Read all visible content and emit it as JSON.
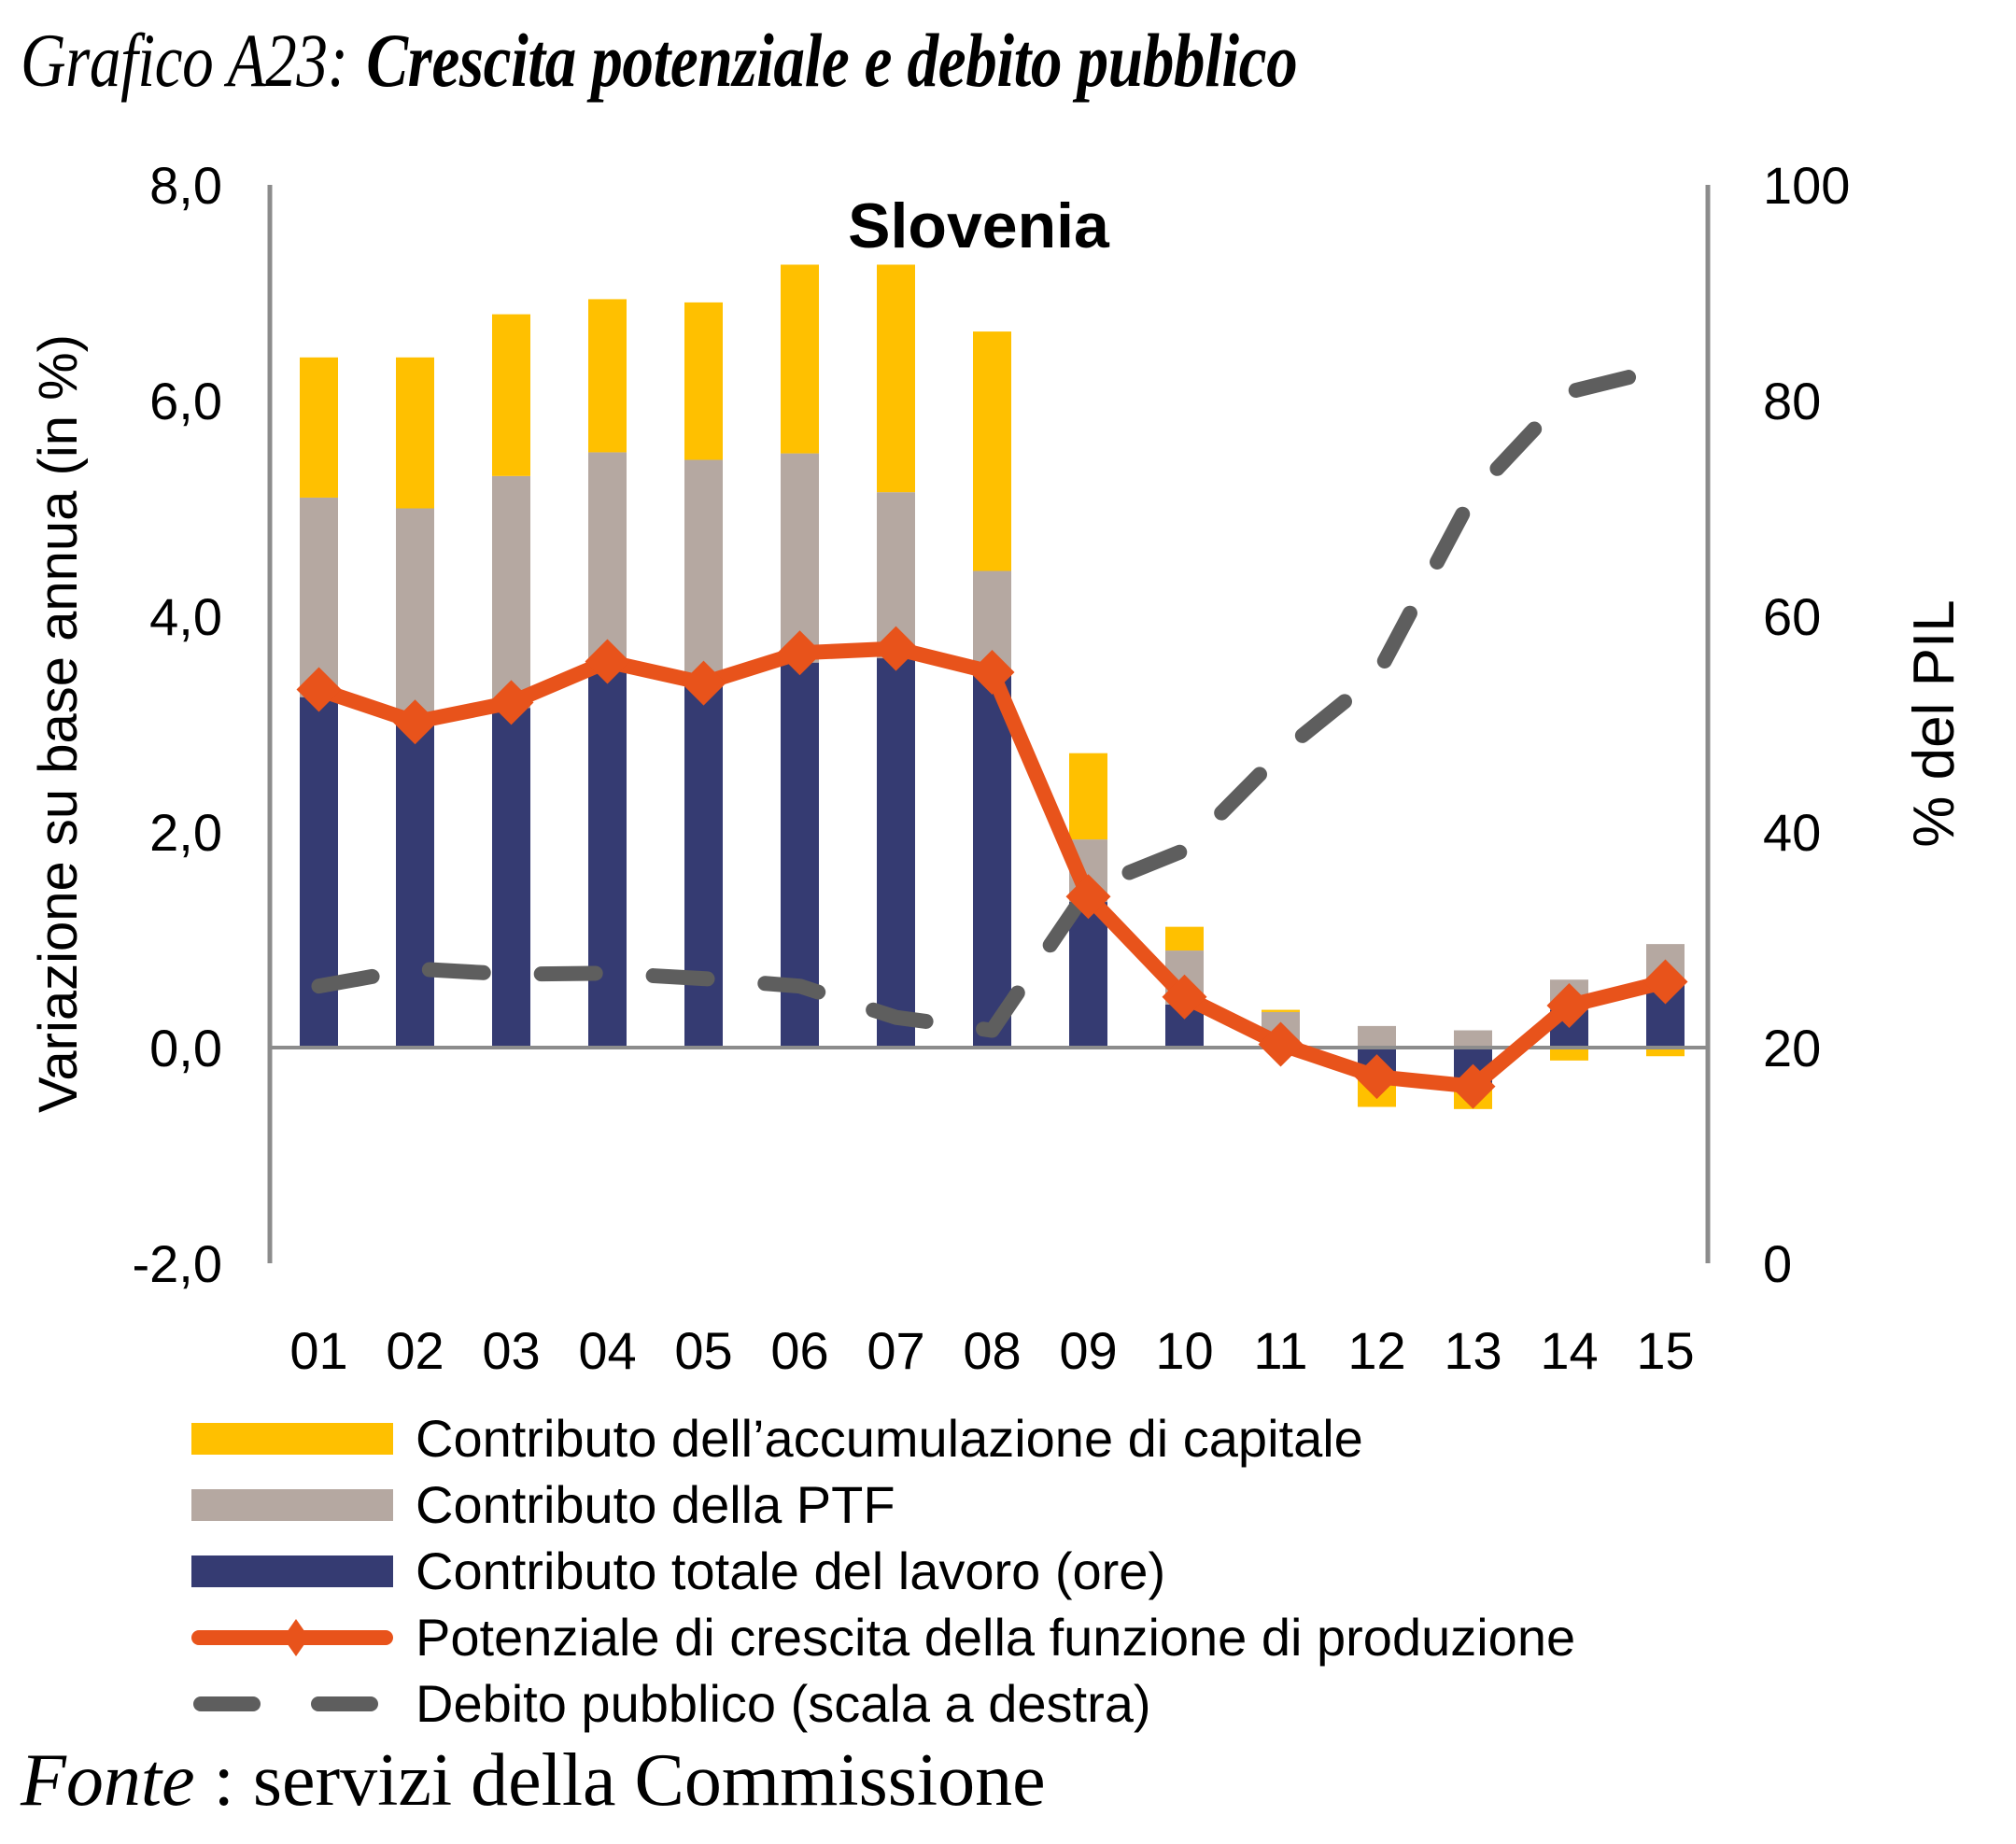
{
  "header": {
    "figure_number": "Grafico A23:",
    "title": "Crescita potenziale e debito pubblico"
  },
  "footer": {
    "source_lead": "Fonte",
    "source_text": " : servizi della Commissione"
  },
  "colors": {
    "capital": "#FFC000",
    "tfp": "#B5A8A1",
    "labour": "#353B72",
    "potential": "#E8531B",
    "debt": "#5E5E5E",
    "axis": "#8C8C8C"
  },
  "chart_data": {
    "type": "bar",
    "subtype": "stacked bar + line (dual axis)",
    "title": "Slovenia",
    "xlabel": "",
    "ylabel": "Variazione su base annua (in %)",
    "y2label": "% del PIL",
    "categories": [
      "01",
      "02",
      "03",
      "04",
      "05",
      "06",
      "07",
      "08",
      "09",
      "10",
      "11",
      "12",
      "13",
      "14",
      "15"
    ],
    "ylim": [
      -2.0,
      8.0
    ],
    "yticks": [
      "8,0",
      "6,0",
      "4,0",
      "2,0",
      "0,0",
      "-2,0"
    ],
    "ytick_values": [
      8,
      6,
      4,
      2,
      0,
      -2
    ],
    "y2lim": [
      0,
      100
    ],
    "y2ticks": [
      "100",
      "80",
      "60",
      "40",
      "20",
      "0"
    ],
    "y2tick_values": [
      100,
      80,
      60,
      40,
      20,
      0
    ],
    "grid": false,
    "legend_position": "bottom",
    "series": [
      {
        "name": "Contributo totale del lavoro (ore)",
        "kind": "bar",
        "axis": "left",
        "color_key": "labour",
        "values": [
          3.25,
          3.0,
          3.15,
          3.5,
          3.35,
          3.57,
          3.61,
          3.45,
          1.35,
          0.4,
          0.05,
          -0.3,
          -0.35,
          0.35,
          0.6
        ]
      },
      {
        "name": "Contributo della PTF",
        "kind": "bar",
        "axis": "left",
        "color_key": "tfp",
        "values": [
          1.85,
          2.0,
          2.15,
          2.02,
          2.1,
          1.94,
          1.54,
          0.97,
          0.58,
          0.5,
          0.28,
          0.2,
          0.16,
          0.28,
          0.36
        ]
      },
      {
        "name": "Contributo dell’accumulazione di capitale",
        "kind": "bar",
        "axis": "left",
        "color_key": "capital",
        "values": [
          1.3,
          1.4,
          1.5,
          1.42,
          1.46,
          1.75,
          2.11,
          2.22,
          0.8,
          0.22,
          0.02,
          -0.25,
          -0.22,
          -0.12,
          -0.08
        ]
      },
      {
        "name": "Potenziale di crescita della funzione di produzione",
        "kind": "line",
        "marker": "diamond",
        "axis": "left",
        "color_key": "potential",
        "values": [
          3.32,
          3.02,
          3.2,
          3.58,
          3.38,
          3.66,
          3.7,
          3.48,
          1.4,
          0.47,
          0.03,
          -0.27,
          -0.36,
          0.39,
          0.61
        ]
      },
      {
        "name": "Debito pubblico (scala a destra)",
        "kind": "line",
        "dash": "dashed",
        "axis": "right",
        "color_key": "debt",
        "values": [
          25.7,
          27.3,
          26.8,
          26.9,
          26.4,
          25.7,
          22.8,
          21.6,
          34.7,
          38.3,
          47.3,
          54.5,
          71.3,
          80.8,
          83.0
        ]
      }
    ]
  },
  "legend": [
    {
      "label": "Contributo dell’accumulazione di capitale",
      "kind": "bar",
      "color_key": "capital"
    },
    {
      "label": "Contributo della PTF",
      "kind": "bar",
      "color_key": "tfp"
    },
    {
      "label": "Contributo totale del lavoro (ore)",
      "kind": "bar",
      "color_key": "labour"
    },
    {
      "label": "Potenziale di crescita della funzione di produzione",
      "kind": "line-marker",
      "color_key": "potential"
    },
    {
      "label": "Debito pubblico (scala a destra)",
      "kind": "dashed",
      "color_key": "debt"
    }
  ]
}
